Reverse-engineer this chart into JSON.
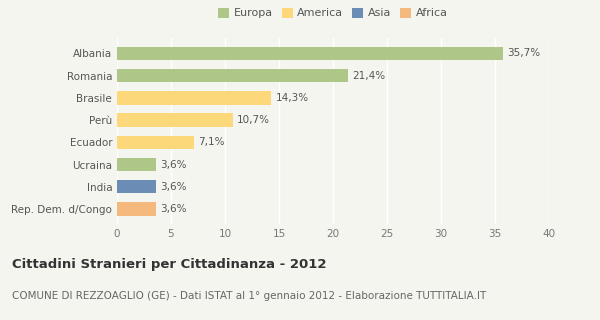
{
  "categories": [
    "Albania",
    "Romania",
    "Brasile",
    "Perù",
    "Ecuador",
    "Ucraina",
    "India",
    "Rep. Dem. d/Congo"
  ],
  "values": [
    35.7,
    21.4,
    14.3,
    10.7,
    7.1,
    3.6,
    3.6,
    3.6
  ],
  "labels": [
    "35,7%",
    "21,4%",
    "14,3%",
    "10,7%",
    "7,1%",
    "3,6%",
    "3,6%",
    "3,6%"
  ],
  "colors": [
    "#aec687",
    "#aec687",
    "#fdd87a",
    "#fdd87a",
    "#fdd87a",
    "#aec687",
    "#6b8db5",
    "#f5b97e"
  ],
  "legend_labels": [
    "Europa",
    "America",
    "Asia",
    "Africa"
  ],
  "legend_colors": [
    "#aec687",
    "#fdd87a",
    "#6b8db5",
    "#f5b97e"
  ],
  "title": "Cittadini Stranieri per Cittadinanza - 2012",
  "subtitle": "COMUNE DI REZZOAGLIO (GE) - Dati ISTAT al 1° gennaio 2012 - Elaborazione TUTTITALIA.IT",
  "xlim": [
    0,
    40
  ],
  "xticks": [
    0,
    5,
    10,
    15,
    20,
    25,
    30,
    35,
    40
  ],
  "background_color": "#f5f5f0",
  "grid_color": "#ffffff",
  "title_fontsize": 9.5,
  "subtitle_fontsize": 7.5,
  "label_fontsize": 7.5,
  "tick_fontsize": 7.5,
  "legend_fontsize": 8
}
